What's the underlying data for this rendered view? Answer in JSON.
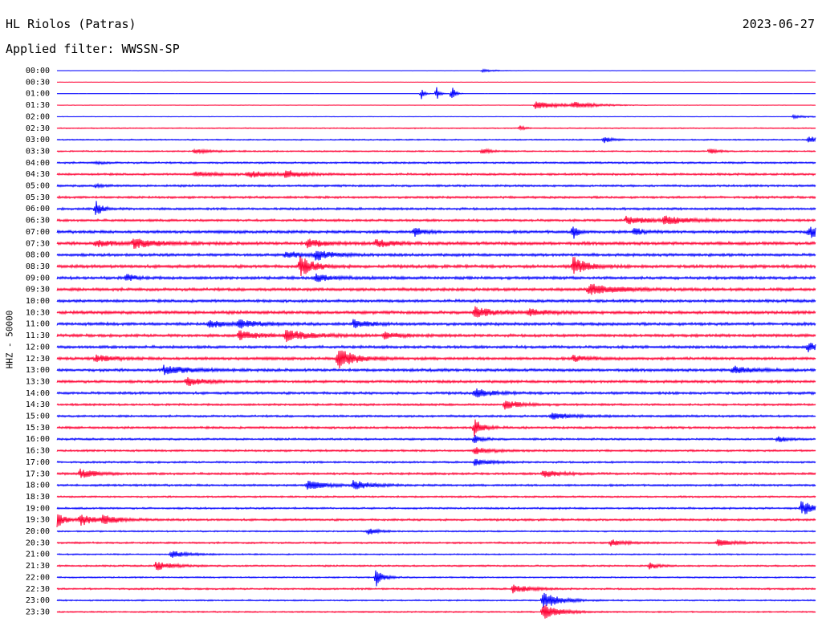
{
  "header": {
    "station": "HL Riolos (Patras)",
    "date": "2023-06-27",
    "filter": "Applied filter: WWSSN-SP"
  },
  "channel_label": "HHZ - 50000",
  "colors": {
    "even_trace": "#0000ff",
    "odd_trace": "#ff0033",
    "text": "#000000"
  },
  "chart_data": {
    "type": "line",
    "title": "HL Riolos (Patras)",
    "subtitle": "Applied filter: WWSSN-SP",
    "ylabel": "HHZ - 50000",
    "xlabel": "",
    "categories": [
      "00:00",
      "00:30",
      "01:00",
      "01:30",
      "02:00",
      "02:30",
      "03:00",
      "03:30",
      "04:00",
      "04:30",
      "05:00",
      "05:30",
      "06:00",
      "06:30",
      "07:00",
      "07:30",
      "08:00",
      "08:30",
      "09:00",
      "09:30",
      "10:00",
      "10:30",
      "11:00",
      "11:30",
      "12:00",
      "12:30",
      "13:00",
      "13:30",
      "14:00",
      "14:30",
      "15:00",
      "15:30",
      "16:00",
      "16:30",
      "17:00",
      "17:30",
      "18:00",
      "18:30",
      "19:00",
      "19:30",
      "20:00",
      "20:30",
      "21:00",
      "21:30",
      "22:00",
      "22:30",
      "23:00",
      "23:30"
    ],
    "series": [
      {
        "name": "00:00",
        "noise": 0.15,
        "events": [
          [
            0.56,
            2.0,
            0.02
          ]
        ]
      },
      {
        "name": "00:30",
        "noise": 0.2,
        "events": []
      },
      {
        "name": "01:00",
        "noise": 0.15,
        "events": [
          [
            0.48,
            9.0,
            0.004
          ],
          [
            0.5,
            10.0,
            0.004
          ],
          [
            0.52,
            14.0,
            0.004
          ]
        ]
      },
      {
        "name": "01:30",
        "noise": 0.3,
        "events": [
          [
            0.63,
            6.0,
            0.03
          ],
          [
            0.68,
            4.0,
            0.03
          ]
        ]
      },
      {
        "name": "02:00",
        "noise": 0.35,
        "events": [
          [
            0.97,
            2.0,
            0.02
          ]
        ]
      },
      {
        "name": "02:30",
        "noise": 0.8,
        "events": [
          [
            0.61,
            4.0,
            0.005
          ]
        ]
      },
      {
        "name": "03:00",
        "noise": 0.9,
        "events": [
          [
            0.72,
            5.0,
            0.01
          ],
          [
            0.99,
            6.0,
            0.01
          ]
        ]
      },
      {
        "name": "03:30",
        "noise": 1.0,
        "events": [
          [
            0.18,
            3.0,
            0.02
          ],
          [
            0.56,
            4.0,
            0.01
          ],
          [
            0.86,
            4.0,
            0.01
          ]
        ]
      },
      {
        "name": "04:00",
        "noise": 1.3,
        "events": [
          [
            0.05,
            2.0,
            0.01
          ]
        ]
      },
      {
        "name": "04:30",
        "noise": 1.5,
        "events": [
          [
            0.18,
            3.0,
            0.03
          ],
          [
            0.25,
            4.0,
            0.03
          ],
          [
            0.3,
            5.0,
            0.02
          ]
        ]
      },
      {
        "name": "05:00",
        "noise": 1.5,
        "events": [
          [
            0.05,
            2.0,
            0.01
          ]
        ]
      },
      {
        "name": "05:30",
        "noise": 1.6,
        "events": []
      },
      {
        "name": "06:00",
        "noise": 1.6,
        "events": [
          [
            0.05,
            12.0,
            0.008
          ]
        ]
      },
      {
        "name": "06:30",
        "noise": 1.7,
        "events": [
          [
            0.75,
            5.0,
            0.03
          ],
          [
            0.8,
            5.0,
            0.03
          ]
        ]
      },
      {
        "name": "07:00",
        "noise": 2.0,
        "events": [
          [
            0.47,
            8.0,
            0.01
          ],
          [
            0.68,
            14.0,
            0.005
          ],
          [
            0.76,
            6.0,
            0.01
          ],
          [
            0.99,
            8.0,
            0.02
          ]
        ]
      },
      {
        "name": "07:30",
        "noise": 2.2,
        "events": [
          [
            0.05,
            5.0,
            0.02
          ],
          [
            0.1,
            6.0,
            0.03
          ],
          [
            0.33,
            6.0,
            0.02
          ],
          [
            0.42,
            5.0,
            0.02
          ]
        ]
      },
      {
        "name": "08:00",
        "noise": 2.0,
        "events": [
          [
            0.3,
            5.0,
            0.02
          ],
          [
            0.34,
            7.0,
            0.02
          ]
        ]
      },
      {
        "name": "08:30",
        "noise": 2.2,
        "events": [
          [
            0.32,
            16.0,
            0.015
          ],
          [
            0.68,
            14.0,
            0.015
          ]
        ]
      },
      {
        "name": "09:00",
        "noise": 2.1,
        "events": [
          [
            0.09,
            6.0,
            0.01
          ],
          [
            0.34,
            5.0,
            0.02
          ]
        ]
      },
      {
        "name": "09:30",
        "noise": 2.1,
        "events": [
          [
            0.7,
            8.0,
            0.03
          ]
        ]
      },
      {
        "name": "10:00",
        "noise": 2.0,
        "events": []
      },
      {
        "name": "10:30",
        "noise": 2.2,
        "events": [
          [
            0.55,
            8.0,
            0.02
          ],
          [
            0.62,
            5.0,
            0.02
          ]
        ]
      },
      {
        "name": "11:00",
        "noise": 2.1,
        "events": [
          [
            0.2,
            5.0,
            0.02
          ],
          [
            0.24,
            6.0,
            0.02
          ],
          [
            0.39,
            5.0,
            0.02
          ]
        ]
      },
      {
        "name": "11:30",
        "noise": 2.0,
        "events": [
          [
            0.24,
            7.0,
            0.02
          ],
          [
            0.3,
            8.0,
            0.03
          ],
          [
            0.43,
            4.0,
            0.02
          ]
        ]
      },
      {
        "name": "12:00",
        "noise": 2.0,
        "events": [
          [
            0.99,
            7.0,
            0.01
          ]
        ]
      },
      {
        "name": "12:30",
        "noise": 2.0,
        "events": [
          [
            0.05,
            5.0,
            0.02
          ],
          [
            0.37,
            14.0,
            0.02
          ],
          [
            0.68,
            4.0,
            0.02
          ]
        ]
      },
      {
        "name": "13:00",
        "noise": 2.0,
        "events": [
          [
            0.14,
            6.0,
            0.03
          ],
          [
            0.89,
            6.0,
            0.02
          ]
        ]
      },
      {
        "name": "13:30",
        "noise": 1.9,
        "events": [
          [
            0.17,
            6.0,
            0.02
          ]
        ]
      },
      {
        "name": "14:00",
        "noise": 1.8,
        "events": [
          [
            0.55,
            6.0,
            0.02
          ]
        ]
      },
      {
        "name": "14:30",
        "noise": 1.5,
        "events": [
          [
            0.59,
            6.0,
            0.02
          ]
        ]
      },
      {
        "name": "15:00",
        "noise": 1.5,
        "events": [
          [
            0.65,
            4.0,
            0.03
          ]
        ]
      },
      {
        "name": "15:30",
        "noise": 1.6,
        "events": [
          [
            0.55,
            14.0,
            0.01
          ]
        ]
      },
      {
        "name": "16:00",
        "noise": 1.4,
        "events": [
          [
            0.55,
            6.0,
            0.01
          ],
          [
            0.95,
            5.0,
            0.01
          ]
        ]
      },
      {
        "name": "16:30",
        "noise": 1.4,
        "events": [
          [
            0.55,
            5.0,
            0.02
          ]
        ]
      },
      {
        "name": "17:00",
        "noise": 1.3,
        "events": [
          [
            0.55,
            4.0,
            0.02
          ]
        ]
      },
      {
        "name": "17:30",
        "noise": 1.6,
        "events": [
          [
            0.03,
            6.0,
            0.02
          ],
          [
            0.64,
            5.0,
            0.02
          ]
        ]
      },
      {
        "name": "18:00",
        "noise": 1.5,
        "events": [
          [
            0.33,
            6.0,
            0.02
          ],
          [
            0.39,
            6.0,
            0.02
          ]
        ]
      },
      {
        "name": "18:30",
        "noise": 1.2,
        "events": []
      },
      {
        "name": "19:00",
        "noise": 1.3,
        "events": [
          [
            0.98,
            10.0,
            0.02
          ]
        ]
      },
      {
        "name": "19:30",
        "noise": 1.5,
        "events": [
          [
            0.0,
            10.0,
            0.01
          ],
          [
            0.03,
            8.0,
            0.02
          ],
          [
            0.06,
            6.0,
            0.02
          ]
        ]
      },
      {
        "name": "20:00",
        "noise": 1.0,
        "events": [
          [
            0.41,
            6.0,
            0.01
          ]
        ]
      },
      {
        "name": "20:30",
        "noise": 1.3,
        "events": [
          [
            0.73,
            4.0,
            0.02
          ],
          [
            0.87,
            4.0,
            0.02
          ]
        ]
      },
      {
        "name": "21:00",
        "noise": 1.0,
        "events": [
          [
            0.15,
            5.0,
            0.02
          ]
        ]
      },
      {
        "name": "21:30",
        "noise": 1.2,
        "events": [
          [
            0.13,
            6.0,
            0.02
          ],
          [
            0.78,
            5.0,
            0.01
          ]
        ]
      },
      {
        "name": "22:00",
        "noise": 1.0,
        "events": [
          [
            0.42,
            14.0,
            0.008
          ]
        ]
      },
      {
        "name": "22:30",
        "noise": 1.2,
        "events": [
          [
            0.6,
            6.0,
            0.02
          ]
        ]
      },
      {
        "name": "23:00",
        "noise": 1.0,
        "events": [
          [
            0.64,
            12.0,
            0.02
          ]
        ]
      },
      {
        "name": "23:30",
        "noise": 1.0,
        "events": [
          [
            0.64,
            12.0,
            0.02
          ]
        ]
      }
    ]
  }
}
